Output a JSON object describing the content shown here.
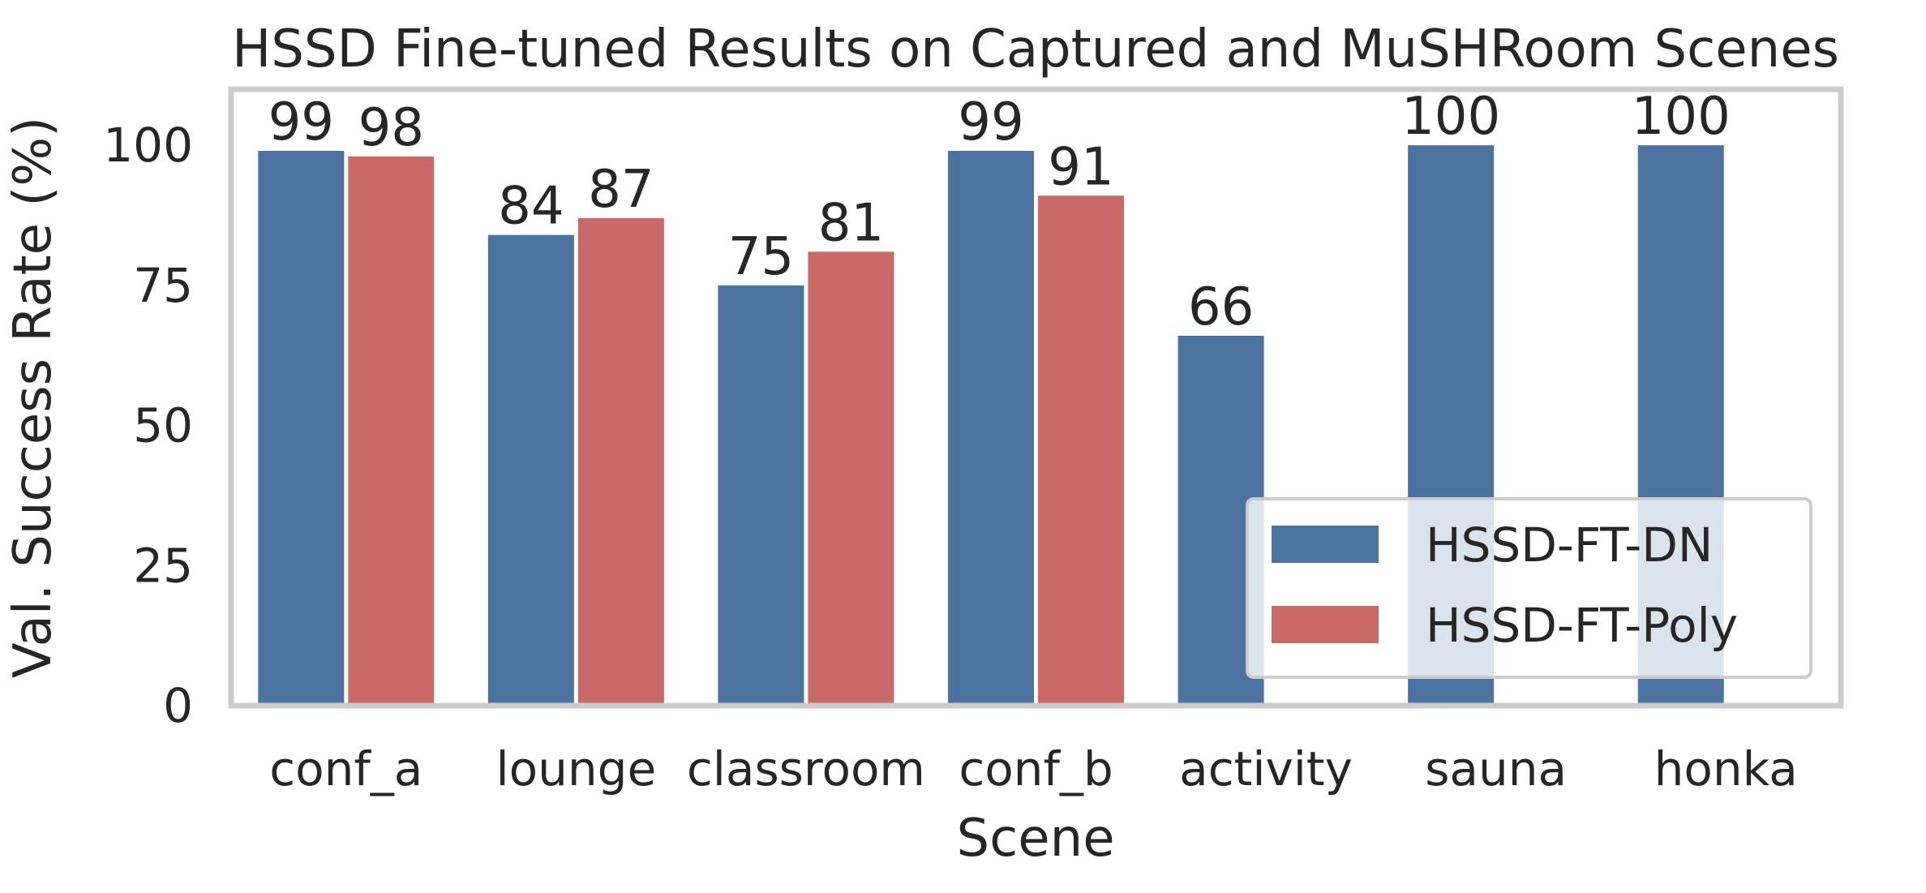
{
  "chart_data": {
    "type": "bar",
    "title": "HSSD Fine-tuned Results on Captured and MuSHRoom Scenes",
    "xlabel": "Scene",
    "ylabel": "Val. Success Rate (%)",
    "ylim": [
      0,
      110
    ],
    "yticks": [
      0,
      25,
      50,
      75,
      100
    ],
    "grid": false,
    "legend_position": "lower-right",
    "categories": [
      "conf_a",
      "lounge",
      "classroom",
      "conf_b",
      "activity",
      "sauna",
      "honka"
    ],
    "series": [
      {
        "name": "HSSD-FT-DN",
        "color": "#4C72A0",
        "values": [
          99,
          84,
          75,
          99,
          66,
          100,
          100
        ]
      },
      {
        "name": "HSSD-FT-Poly",
        "color": "#C96A69",
        "values": [
          98,
          87,
          81,
          91,
          null,
          null,
          null
        ]
      }
    ]
  }
}
